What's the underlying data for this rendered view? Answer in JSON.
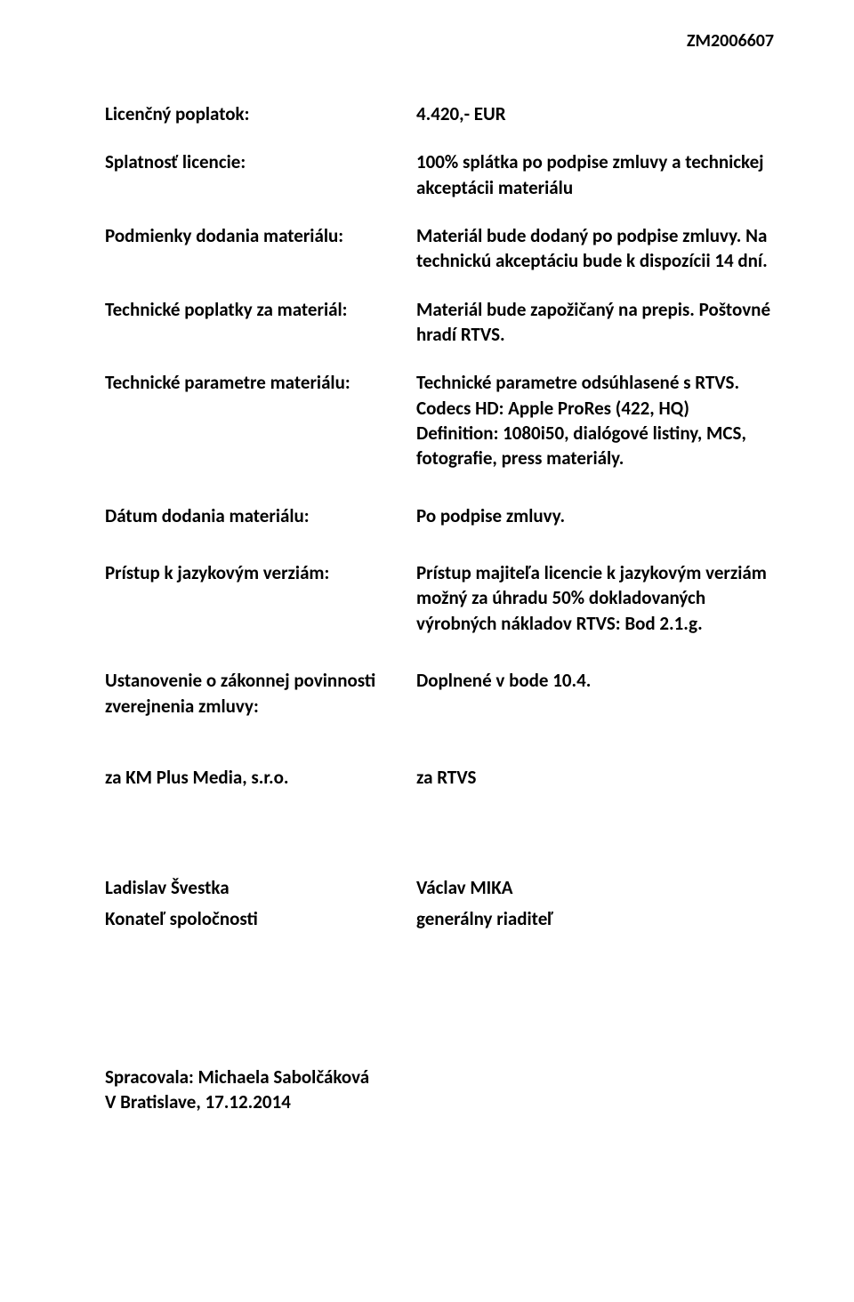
{
  "doc_id": "ZM2006607",
  "rows": {
    "licence_fee": {
      "label": "Licenčný poplatok:",
      "value": "4.420,- EUR"
    },
    "licence_due": {
      "label": "Splatnosť licencie:",
      "value": "100% splátka po podpise zmluvy a technickej akceptácii materiálu"
    },
    "delivery_terms": {
      "label": "Podmienky dodania materiálu:",
      "value": "Materiál bude dodaný po podpise zmluvy. Na technickú akceptáciu bude k dispozícii 14 dní."
    },
    "tech_fees": {
      "label": "Technické poplatky za materiál:",
      "value": "Materiál bude zapožičaný na prepis. Poštovné hradí RTVS."
    },
    "tech_params": {
      "label": "Technické parametre materiálu:",
      "value": "Technické parametre odsúhlasené s RTVS. Codecs HD: Apple ProRes (422, HQ) Definition: 1080i50, dialógové listiny, MCS, fotografie, press materiály."
    },
    "delivery_date": {
      "label": "Dátum dodania materiálu:",
      "value": "Po podpise zmluvy."
    },
    "lang_access": {
      "label": "Prístup k jazykovým verziám:",
      "value": "Prístup majiteľa licencie k jazykovým verziám možný za úhradu 50% dokladovaných výrobných nákladov RTVS: Bod 2.1.g."
    },
    "law_clause": {
      "label": "Ustanovenie o zákonnej povinnosti zverejnenia zmluvy:",
      "value": "Doplnené v bode 10.4."
    }
  },
  "signers": {
    "left_for": "za KM Plus Media, s.r.o.",
    "right_for": "za RTVS",
    "left_name": "Ladislav Švestka",
    "left_role": "Konateľ spoločnosti",
    "right_name": "Václav MIKA",
    "right_role": "generálny riaditeľ"
  },
  "footer": {
    "line1": "Spracovala: Michaela Sabolčáková",
    "line2": "V Bratislave, 17.12.2014"
  }
}
